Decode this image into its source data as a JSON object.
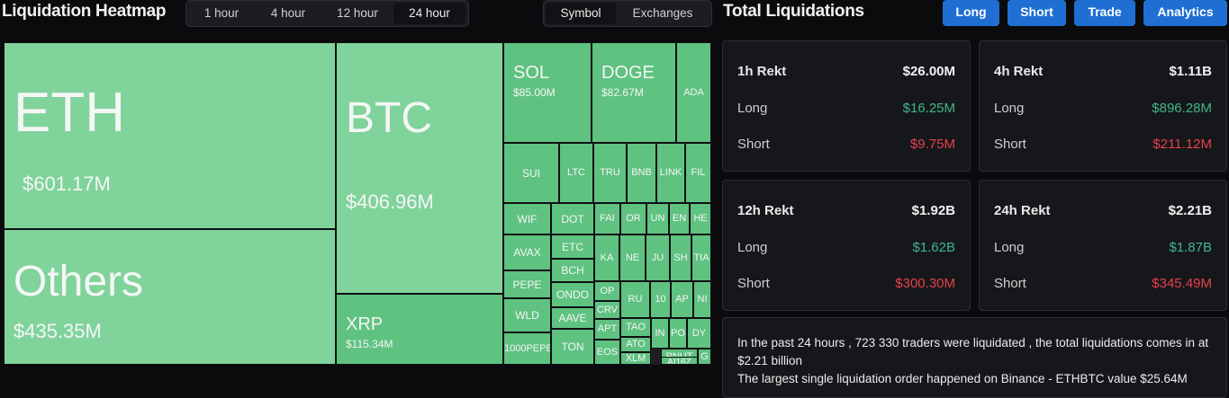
{
  "heatmap": {
    "title": "Liquidation Heatmap",
    "timeframes": [
      "1 hour",
      "4 hour",
      "12 hour",
      "24 hour"
    ],
    "active_timeframe": "24 hour",
    "views": [
      "Symbol",
      "Exchanges"
    ],
    "active_view": "Symbol",
    "cells": [
      {
        "name": "ETH",
        "value": "$601.17M"
      },
      {
        "name": "Others",
        "value": "$435.35M"
      },
      {
        "name": "BTC",
        "value": "$406.96M"
      },
      {
        "name": "XRP",
        "value": "$115.34M"
      },
      {
        "name": "SOL",
        "value": "$85.00M"
      },
      {
        "name": "DOGE",
        "value": "$82.67M"
      },
      {
        "name": "ADA",
        "value": ""
      },
      {
        "name": "SUI",
        "value": ""
      },
      {
        "name": "LTC",
        "value": ""
      },
      {
        "name": "TRU",
        "value": ""
      },
      {
        "name": "BNB",
        "value": ""
      },
      {
        "name": "LINK",
        "value": ""
      },
      {
        "name": "FIL",
        "value": ""
      },
      {
        "name": "WIF",
        "value": ""
      },
      {
        "name": "DOT",
        "value": ""
      },
      {
        "name": "FAI",
        "value": ""
      },
      {
        "name": "OR",
        "value": ""
      },
      {
        "name": "UN",
        "value": ""
      },
      {
        "name": "EN",
        "value": ""
      },
      {
        "name": "HE",
        "value": ""
      },
      {
        "name": "AVAX",
        "value": ""
      },
      {
        "name": "ETC",
        "value": ""
      },
      {
        "name": "KA",
        "value": ""
      },
      {
        "name": "NE",
        "value": ""
      },
      {
        "name": "JU",
        "value": ""
      },
      {
        "name": "SH",
        "value": ""
      },
      {
        "name": "TIA",
        "value": ""
      },
      {
        "name": "BCH",
        "value": ""
      },
      {
        "name": "PEPE",
        "value": ""
      },
      {
        "name": "OP",
        "value": ""
      },
      {
        "name": "RU",
        "value": ""
      },
      {
        "name": "10",
        "value": ""
      },
      {
        "name": "AP",
        "value": ""
      },
      {
        "name": "NI",
        "value": ""
      },
      {
        "name": "ONDO",
        "value": ""
      },
      {
        "name": "CRV",
        "value": ""
      },
      {
        "name": "WLD",
        "value": ""
      },
      {
        "name": "TAO",
        "value": ""
      },
      {
        "name": "IN",
        "value": ""
      },
      {
        "name": "PO",
        "value": ""
      },
      {
        "name": "DY",
        "value": ""
      },
      {
        "name": "AAVE",
        "value": ""
      },
      {
        "name": "APT",
        "value": ""
      },
      {
        "name": "ATO",
        "value": ""
      },
      {
        "name": "1000PEPE",
        "value": ""
      },
      {
        "name": "PNUT",
        "value": ""
      },
      {
        "name": "AI16Z",
        "value": ""
      },
      {
        "name": "G",
        "value": ""
      },
      {
        "name": "TON",
        "value": ""
      },
      {
        "name": "EOS",
        "value": ""
      },
      {
        "name": "XLM",
        "value": ""
      }
    ]
  },
  "totals": {
    "title": "Total Liquidations",
    "buttons": [
      "Long",
      "Short",
      "Trade",
      "Analytics"
    ],
    "cards": [
      {
        "period": "1h Rekt",
        "total": "$26.00M",
        "long_label": "Long",
        "long": "$16.25M",
        "short_label": "Short",
        "short": "$9.75M"
      },
      {
        "period": "4h Rekt",
        "total": "$1.11B",
        "long_label": "Long",
        "long": "$896.28M",
        "short_label": "Short",
        "short": "$211.12M"
      },
      {
        "period": "12h Rekt",
        "total": "$1.92B",
        "long_label": "Long",
        "long": "$1.62B",
        "short_label": "Short",
        "short": "$300.30M"
      },
      {
        "period": "24h Rekt",
        "total": "$2.21B",
        "long_label": "Long",
        "long": "$1.87B",
        "short_label": "Short",
        "short": "$345.49M"
      }
    ],
    "summary_line1": "In the past 24 hours , 723 330 traders were liquidated , the total liquidations comes in at $2.21 billion",
    "summary_line2": "The largest single liquidation order happened on Binance - ETHBTC value $25.64M"
  },
  "colors": {
    "cell_light": "#80d39b",
    "cell_mid": "#74cc8f",
    "cell_dark": "#5fc281",
    "accent_blue": "#1f6fd2",
    "long_green": "#3fb68b",
    "short_red": "#e5414c"
  }
}
